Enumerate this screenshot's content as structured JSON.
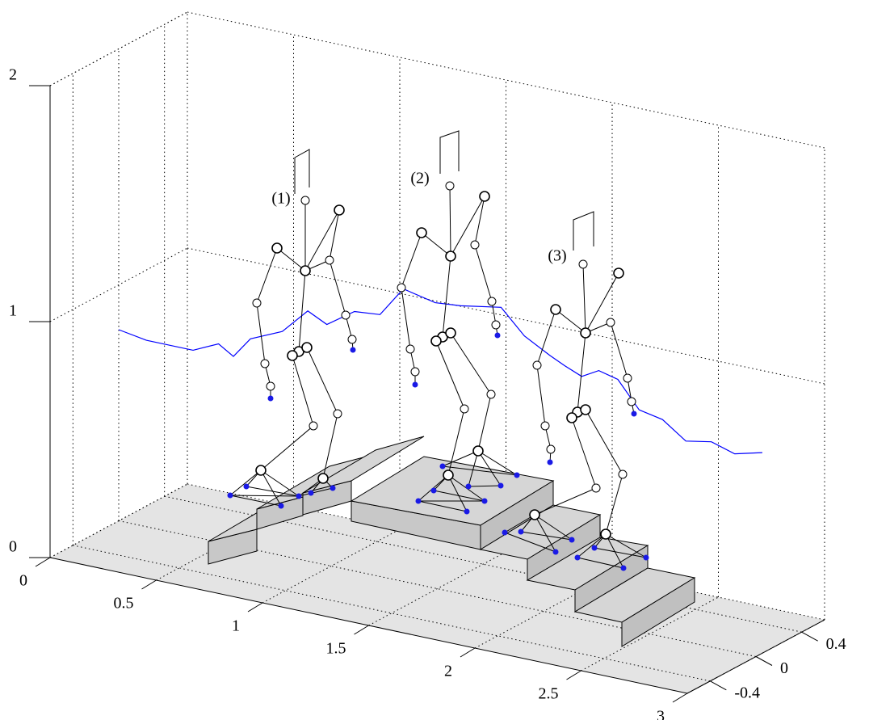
{
  "chart_data": {
    "type": "line3d",
    "xlim": [
      0,
      3
    ],
    "ylim": [
      -0.6,
      0.6
    ],
    "zlim": [
      0,
      2
    ],
    "xticks": [
      0,
      0.5,
      1,
      1.5,
      2,
      2.5,
      3
    ],
    "yticks": [
      -0.4,
      0,
      0.4
    ],
    "zticks": [
      0,
      1,
      2
    ],
    "grid": true,
    "series": [
      {
        "color": "#0000ff",
        "x": [
          0.0,
          0.13,
          0.35,
          0.47,
          0.54,
          0.62,
          0.77,
          0.89,
          0.98,
          1.11,
          1.23,
          1.34,
          1.49,
          1.61,
          1.8,
          1.91,
          2.03,
          2.1,
          2.18,
          2.26,
          2.35,
          2.45,
          2.56,
          2.67,
          2.79,
          2.9,
          3.03
        ],
        "y": [
          0,
          0,
          0,
          0,
          0,
          0,
          0,
          0,
          0,
          0,
          0,
          0,
          0,
          0,
          0,
          0,
          0,
          0,
          0,
          0,
          0,
          0,
          0,
          0,
          0,
          0,
          0
        ],
        "z": [
          0.81,
          0.79,
          0.79,
          0.84,
          0.8,
          0.89,
          0.95,
          1.06,
          1.02,
          1.1,
          1.11,
          1.24,
          1.21,
          1.22,
          1.25,
          1.15,
          1.09,
          1.06,
          1.03,
          1.07,
          1.05,
          0.94,
          0.92,
          0.85,
          0.87,
          0.84,
          0.87
        ]
      }
    ],
    "annotations": [
      "(1)",
      "(2)",
      "(3)"
    ]
  }
}
